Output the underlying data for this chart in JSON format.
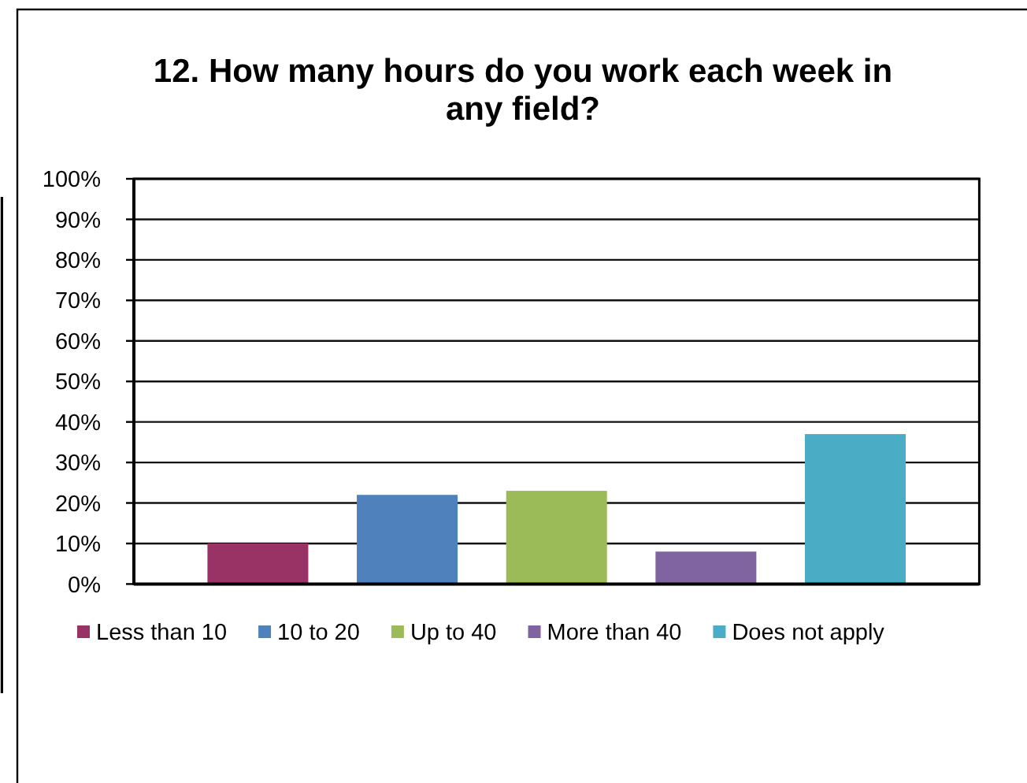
{
  "chart_data": {
    "type": "bar",
    "title": "12. How many hours do you work each week in any field?",
    "categories": [
      null
    ],
    "series": [
      {
        "name": "Less than 10",
        "color": "#993366",
        "values": [
          10
        ]
      },
      {
        "name": "10 to 20",
        "color": "#4f81bd",
        "values": [
          22
        ]
      },
      {
        "name": "Up to 40",
        "color": "#9bbb59",
        "values": [
          23
        ]
      },
      {
        "name": "More than 40",
        "color": "#8064a2",
        "values": [
          8
        ]
      },
      {
        "name": "Does not apply",
        "color": "#4bacc6",
        "values": [
          37
        ]
      }
    ],
    "ylim": [
      0,
      100
    ],
    "yticks": [
      {
        "value": 0,
        "label": "0%"
      },
      {
        "value": 10,
        "label": "10%"
      },
      {
        "value": 20,
        "label": "20%"
      },
      {
        "value": 30,
        "label": "30%"
      },
      {
        "value": 40,
        "label": "40%"
      },
      {
        "value": 50,
        "label": "50%"
      },
      {
        "value": 60,
        "label": "60%"
      },
      {
        "value": 70,
        "label": "70%"
      },
      {
        "value": 80,
        "label": "80%"
      },
      {
        "value": 90,
        "label": "90%"
      },
      {
        "value": 100,
        "label": "100%"
      }
    ],
    "grid": "y",
    "legend": "bottom"
  }
}
